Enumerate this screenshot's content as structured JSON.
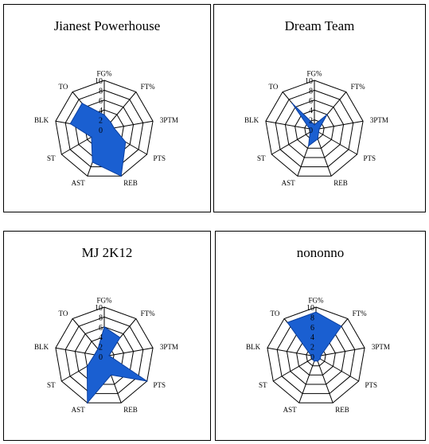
{
  "chart_data": [
    {
      "type": "radar",
      "title": "Jianest Powerhouse",
      "axes": [
        "FG%",
        "FT%",
        "3PTM",
        "PTS",
        "REB",
        "AST",
        "ST",
        "BLK",
        "TO"
      ],
      "ticks": [
        "0",
        "2",
        "4",
        "6",
        "8",
        "10"
      ],
      "rlim": [
        0,
        10
      ],
      "color": "#1a5fd1",
      "values": [
        3,
        2,
        2,
        5,
        10,
        7,
        3,
        7,
        7
      ]
    },
    {
      "type": "radar",
      "title": "Dream Team",
      "axes": [
        "FG%",
        "FT%",
        "3PTM",
        "PTS",
        "REB",
        "AST",
        "ST",
        "BLK",
        "TO"
      ],
      "ticks": [
        "0",
        "2",
        "4",
        "6",
        "8",
        "10"
      ],
      "rlim": [
        0,
        10
      ],
      "color": "#1a5fd1",
      "values": [
        1,
        4,
        1,
        1,
        2,
        3.5,
        1,
        1,
        7
      ]
    },
    {
      "type": "radar",
      "title": "MJ 2K12",
      "axes": [
        "FG%",
        "FT%",
        "3PTM",
        "PTS",
        "REB",
        "AST",
        "ST",
        "BLK",
        "TO"
      ],
      "ticks": [
        "0",
        "2",
        "4",
        "6",
        "8",
        "10"
      ],
      "rlim": [
        0,
        10
      ],
      "color": "#1a5fd1",
      "values": [
        6,
        5,
        1,
        10,
        4,
        10,
        4,
        2,
        2
      ]
    },
    {
      "type": "radar",
      "title": "nononno",
      "axes": [
        "FG%",
        "FT%",
        "3PTM",
        "PTS",
        "REB",
        "AST",
        "ST",
        "BLK",
        "TO"
      ],
      "ticks": [
        "0",
        "2",
        "4",
        "6",
        "8",
        "10"
      ],
      "rlim": [
        0,
        10
      ],
      "color": "#1a5fd1",
      "values": [
        9,
        8,
        1,
        1,
        1,
        1,
        1,
        1,
        9
      ]
    }
  ]
}
